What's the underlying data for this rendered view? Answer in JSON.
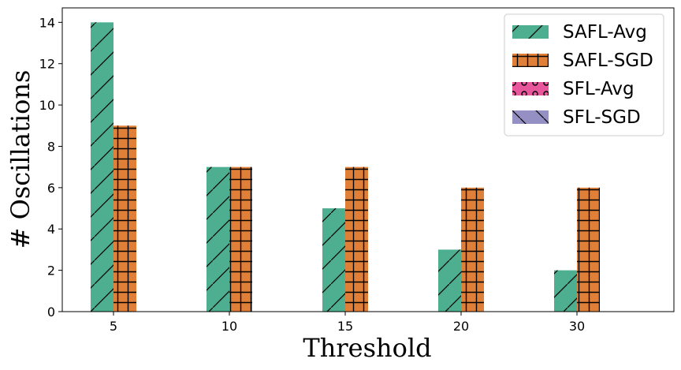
{
  "chart_data": {
    "type": "bar",
    "title": "",
    "xlabel": "Threshold",
    "ylabel": "# Oscillations",
    "categories": [
      "5",
      "10",
      "15",
      "20",
      "30"
    ],
    "ylim": [
      0,
      14.7
    ],
    "yticks": [
      0,
      2,
      4,
      6,
      8,
      10,
      12,
      14
    ],
    "grid": false,
    "legend_position": "top-right",
    "series": [
      {
        "name": "SAFL-Avg",
        "color": "#4daf8f",
        "hatch": "diagonal",
        "values": [
          14,
          7,
          5,
          3,
          2
        ]
      },
      {
        "name": "SAFL-SGD",
        "color": "#e08038",
        "hatch": "grid",
        "values": [
          9,
          7,
          7,
          6,
          6
        ]
      },
      {
        "name": "SFL-Avg",
        "color": "#e8579b",
        "hatch": "circles",
        "values": [
          0,
          0,
          0,
          0,
          0
        ]
      },
      {
        "name": "SFL-SGD",
        "color": "#9590c4",
        "hatch": "backdiagonal",
        "values": [
          0,
          0,
          0,
          0,
          0
        ]
      }
    ]
  }
}
